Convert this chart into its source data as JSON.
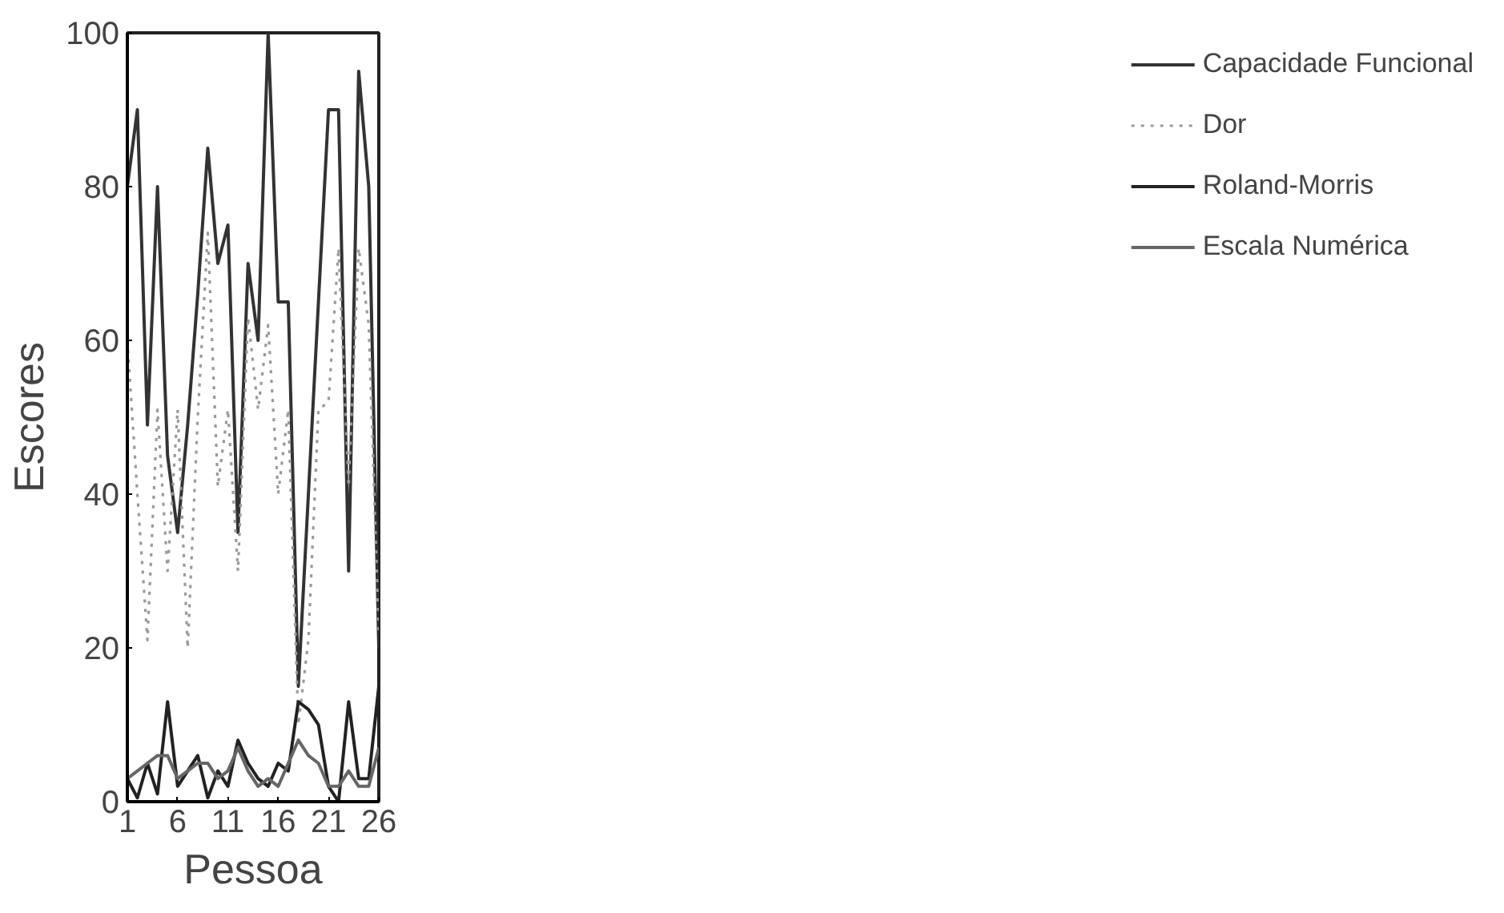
{
  "chart_data": {
    "type": "line",
    "xlabel": "Pessoa",
    "ylabel": "Escores",
    "x": [
      1,
      2,
      3,
      4,
      5,
      6,
      7,
      8,
      9,
      10,
      11,
      12,
      13,
      14,
      15,
      16,
      17,
      18,
      19,
      20,
      21,
      22,
      23,
      24,
      25,
      26
    ],
    "xlim": [
      1,
      26
    ],
    "xticks": [
      1,
      6,
      11,
      16,
      21,
      26
    ],
    "ylim": [
      0,
      100
    ],
    "yticks": [
      0,
      20,
      40,
      60,
      80,
      100
    ],
    "grid": false,
    "legend": "right",
    "marker": "none",
    "series": [
      {
        "name": "Capacidade Funcional",
        "color": "#333333",
        "line_style": "solid",
        "values": [
          80,
          90,
          49,
          80,
          45,
          35,
          49,
          66,
          85,
          70,
          75,
          35,
          70,
          60,
          100,
          65,
          65,
          15,
          40,
          65,
          90,
          90,
          30,
          95,
          80,
          20
        ]
      },
      {
        "name": "Dor",
        "color": "#9a9a9a",
        "line_style": "dotted",
        "values": [
          60,
          40,
          21,
          51,
          30,
          51,
          20,
          50,
          74,
          41,
          51,
          30,
          63,
          51,
          62,
          40,
          51,
          10,
          21,
          51,
          52,
          72,
          41,
          72,
          62,
          22
        ]
      },
      {
        "name": "Roland-Morris",
        "color": "#222222",
        "line_style": "solid",
        "values": [
          3,
          0.5,
          5,
          1,
          13,
          2,
          4,
          6,
          0.5,
          4,
          2,
          8,
          5,
          3,
          2,
          5,
          4,
          13,
          12,
          10,
          2,
          0,
          13,
          3,
          3,
          15
        ]
      },
      {
        "name": "Escala Numérica",
        "color": "#666666",
        "line_style": "solid",
        "values": [
          3,
          4,
          5,
          6,
          6,
          3,
          4,
          5,
          5,
          3,
          4,
          7,
          4,
          2,
          3,
          2,
          5,
          8,
          6,
          5,
          2,
          2,
          4,
          2,
          2,
          7
        ]
      }
    ]
  }
}
